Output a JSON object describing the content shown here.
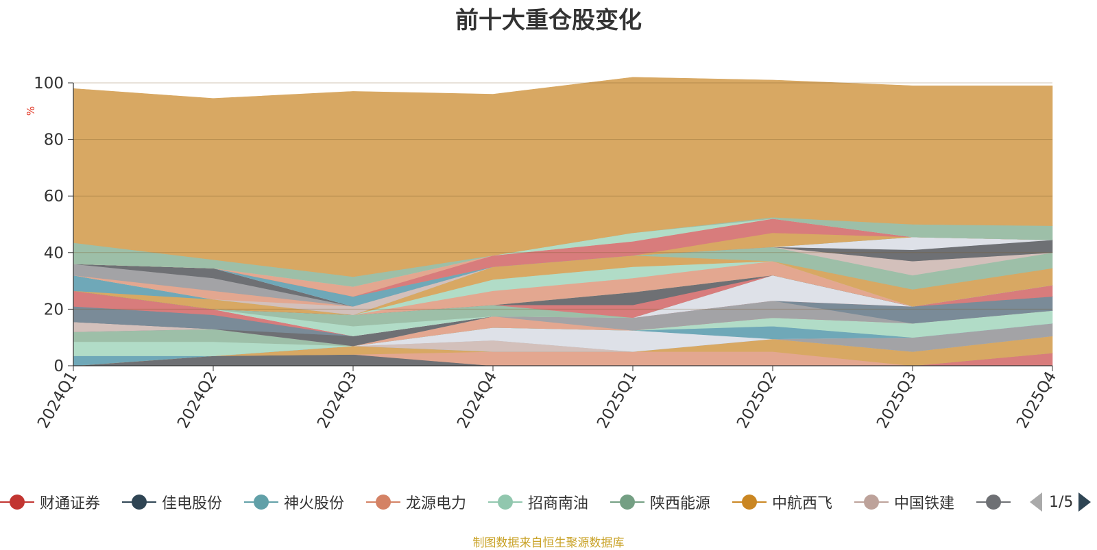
{
  "chart_data": {
    "type": "area",
    "stacked": true,
    "title": "前十大重仓股变化",
    "ylabel": "%",
    "ylim": [
      0,
      100
    ],
    "yticks": [
      0,
      20,
      40,
      60,
      80,
      100
    ],
    "categories": [
      "2024Q1",
      "2024Q2",
      "2024Q3",
      "2024Q4",
      "2025Q1",
      "2025Q2",
      "2025Q3",
      "2025Q4"
    ],
    "grid": true,
    "legend_position": "bottom",
    "series": [
      {
        "name": "",
        "color": "#d87c7c",
        "values": [
          0,
          0,
          0,
          0,
          0,
          0,
          0,
          4.5
        ]
      },
      {
        "name": "",
        "color": "#6e7074",
        "values": [
          0,
          3.5,
          4,
          0,
          0,
          0,
          0,
          0
        ]
      },
      {
        "name": "",
        "color": "#e3a790",
        "values": [
          0,
          0,
          0,
          5,
          5,
          5,
          0,
          0
        ]
      },
      {
        "name": "",
        "color": "#d8a863",
        "values": [
          0,
          0,
          3,
          0,
          0,
          4.5,
          5,
          6
        ]
      },
      {
        "name": "",
        "color": "#6fa8b8",
        "values": [
          3.5,
          0,
          0,
          0,
          0,
          0,
          0,
          0
        ]
      },
      {
        "name": "",
        "color": "#d3c0bb",
        "values": [
          0,
          0,
          0,
          4,
          0,
          0,
          0,
          0
        ]
      },
      {
        "name": "",
        "color": "#a3a3a6",
        "values": [
          0,
          0,
          0,
          0,
          0,
          0,
          5,
          4.5
        ]
      },
      {
        "name": "",
        "color": "#dee1e8",
        "values": [
          0,
          0,
          0,
          4.5,
          7.5,
          0,
          0,
          0
        ]
      },
      {
        "name": "",
        "color": "#6fa8b8",
        "values": [
          0,
          0,
          0,
          0,
          0,
          4.5,
          0,
          0
        ]
      },
      {
        "name": "",
        "color": "#b1dcc7",
        "values": [
          5,
          5,
          0,
          0,
          0,
          3,
          5,
          4.5
        ]
      },
      {
        "name": "",
        "color": "#9dbfa8",
        "values": [
          3.5,
          4.5,
          0,
          0,
          0,
          0,
          0,
          0
        ]
      },
      {
        "name": "",
        "color": "#e3a790",
        "values": [
          0,
          0,
          0,
          4,
          0,
          0,
          0,
          0
        ]
      },
      {
        "name": "",
        "color": "#a3a3a6",
        "values": [
          0,
          0,
          0,
          0,
          4.5,
          6,
          0,
          0
        ]
      },
      {
        "name": "",
        "color": "#7a8b98",
        "values": [
          0,
          0,
          0,
          0,
          0,
          0,
          6,
          5
        ]
      },
      {
        "name": "",
        "color": "#d3c0bb",
        "values": [
          3.5,
          0,
          0,
          0,
          0,
          0,
          0,
          0
        ]
      },
      {
        "name": "",
        "color": "#6e7074",
        "values": [
          0,
          0,
          3.5,
          0,
          0,
          0,
          0,
          0
        ]
      },
      {
        "name": "",
        "color": "#7a8b98",
        "values": [
          5.5,
          5,
          0,
          0,
          0,
          0,
          0,
          0
        ]
      },
      {
        "name": "",
        "color": "#d87c7c",
        "values": [
          5.5,
          2,
          0,
          0,
          0,
          0,
          0,
          4
        ]
      },
      {
        "name": "",
        "color": "#dee1e8",
        "values": [
          0,
          0,
          0,
          0,
          0,
          9,
          0,
          0
        ]
      },
      {
        "name": "",
        "color": "#b1dcc7",
        "values": [
          0,
          0,
          3.5,
          0,
          0,
          0,
          0,
          0
        ]
      },
      {
        "name": "",
        "color": "#9dbfa8",
        "values": [
          0,
          0,
          4,
          4,
          0,
          0,
          0,
          0
        ]
      },
      {
        "name": "",
        "color": "#d87c7c",
        "values": [
          0,
          0,
          0,
          0,
          4.5,
          0,
          0,
          0
        ]
      },
      {
        "name": "",
        "color": "#6e7074",
        "values": [
          0,
          0,
          0,
          0,
          4.5,
          0,
          0,
          0
        ]
      },
      {
        "name": "",
        "color": "#d8a863",
        "values": [
          0,
          3.5,
          0,
          0,
          0,
          0,
          0,
          0
        ]
      },
      {
        "name": "",
        "color": "#6fa8b8",
        "values": [
          5.5,
          0,
          0,
          0,
          0,
          0,
          0,
          0
        ]
      },
      {
        "name": "",
        "color": "#e3a790",
        "values": [
          0,
          0,
          0,
          5,
          5,
          5,
          0,
          0
        ]
      },
      {
        "name": "",
        "color": "#b1dcc7",
        "values": [
          0,
          0,
          0,
          4,
          4,
          0,
          0,
          0
        ]
      },
      {
        "name": "",
        "color": "#d8a863",
        "values": [
          0,
          0,
          0,
          4.5,
          4,
          0,
          6,
          6
        ]
      },
      {
        "name": "",
        "color": "#9dbfa8",
        "values": [
          0,
          0,
          0,
          0,
          0,
          5,
          5,
          5.5
        ]
      },
      {
        "name": "",
        "color": "#d3c0bb",
        "values": [
          0,
          0,
          3,
          0,
          0,
          0,
          5,
          0
        ]
      },
      {
        "name": "",
        "color": "#e3a790",
        "values": [
          0,
          3,
          0,
          0,
          0,
          0,
          0,
          0
        ]
      },
      {
        "name": "",
        "color": "#a3a3a6",
        "values": [
          4,
          4.5,
          0,
          0,
          0,
          0,
          0,
          0
        ]
      },
      {
        "name": "",
        "color": "#6e7074",
        "values": [
          0,
          3.5,
          0,
          0,
          0,
          0,
          4,
          4.5
        ]
      },
      {
        "name": "",
        "color": "#7a8b98",
        "values": [
          0,
          0,
          0,
          0,
          0,
          0,
          0,
          0
        ]
      },
      {
        "name": "",
        "color": "#dee1e8",
        "values": [
          0,
          0,
          0,
          0,
          0,
          0,
          4.5,
          0
        ]
      },
      {
        "name": "",
        "color": "#6fa8b8",
        "values": [
          0,
          0,
          3.5,
          0,
          0,
          0,
          0,
          0
        ]
      },
      {
        "name": "",
        "color": "#d8a863",
        "values": [
          0,
          0,
          0,
          0,
          0,
          5,
          0,
          0
        ]
      },
      {
        "name": "",
        "color": "#d87c7c",
        "values": [
          0,
          0,
          0,
          4,
          5,
          5,
          0,
          0
        ]
      },
      {
        "name": "",
        "color": "#e3a790",
        "values": [
          0,
          0,
          3.5,
          0,
          0,
          0,
          0,
          0
        ]
      },
      {
        "name": "",
        "color": "#b1dcc7",
        "values": [
          0,
          0,
          0,
          0,
          3,
          0,
          0,
          0
        ]
      },
      {
        "name": "",
        "color": "#9dbfa8",
        "values": [
          7.5,
          3,
          3.5,
          0,
          0,
          0.5,
          4.5,
          5
        ]
      },
      {
        "name": "",
        "color": "#d8a863",
        "values": [
          54.5,
          57,
          65.5,
          57,
          55,
          48.5,
          49,
          49.5
        ]
      }
    ]
  },
  "legend": {
    "items": [
      {
        "name": "财通证券",
        "color": "#c23531"
      },
      {
        "name": "佳电股份",
        "color": "#2f4554"
      },
      {
        "name": "神火股份",
        "color": "#61a0a8"
      },
      {
        "name": "龙源电力",
        "color": "#d48265"
      },
      {
        "name": "招商南油",
        "color": "#91c7ae"
      },
      {
        "name": "陕西能源",
        "color": "#749f83"
      },
      {
        "name": "中航西飞",
        "color": "#ca8622"
      },
      {
        "name": "中国铁建",
        "color": "#bda29a"
      },
      {
        "name": "",
        "color": "#6e7074"
      }
    ],
    "page_text": "1/5"
  },
  "source_note": "制图数据来自恒生聚源数据库"
}
